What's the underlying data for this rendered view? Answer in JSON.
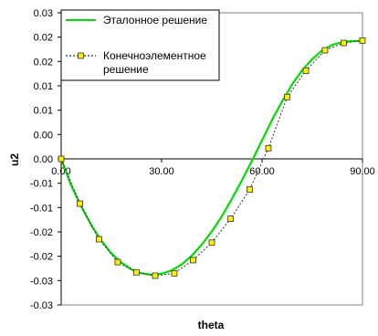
{
  "chart_data": {
    "type": "line",
    "xlabel": "theta",
    "ylabel": "u2",
    "xlim": [
      0,
      90
    ],
    "ylim": [
      -0.03,
      0.03
    ],
    "x_ticks": [
      0,
      30,
      60,
      90
    ],
    "x_tick_labels": [
      "0.00",
      "30.00",
      "60.00",
      "90.00"
    ],
    "y_ticks": [
      0.03,
      0.025,
      0.02,
      0.015,
      0.01,
      0.005,
      0,
      -0.005,
      -0.01,
      -0.015,
      -0.02,
      -0.025,
      -0.03
    ],
    "y_tick_labels": [
      "0.03",
      "0.02",
      "0.02",
      "0.01",
      "0.01",
      "0.00",
      "0.00",
      "-0.01",
      "-0.01",
      "-0.02",
      "-0.02",
      "-0.03",
      "-0.03"
    ],
    "legend_position": "top-left",
    "grid": false,
    "series": [
      {
        "name": "Эталонное решение",
        "style": "solid",
        "color": "#00dd00",
        "x": [
          0,
          3,
          6,
          9,
          12,
          15,
          18,
          21,
          24,
          27,
          30,
          33,
          36,
          39,
          42,
          45,
          48,
          51,
          54,
          57,
          60,
          63,
          66,
          69,
          72,
          75,
          78,
          81,
          84,
          87,
          90
        ],
        "values": [
          0,
          -0.0055,
          -0.0098,
          -0.0136,
          -0.0168,
          -0.0194,
          -0.0213,
          -0.0227,
          -0.0235,
          -0.0238,
          -0.0236,
          -0.0229,
          -0.0217,
          -0.0199,
          -0.0176,
          -0.0149,
          -0.0118,
          -0.0082,
          -0.0044,
          -0.0004,
          0.0038,
          0.008,
          0.0118,
          0.0153,
          0.0182,
          0.0205,
          0.0223,
          0.0234,
          0.024,
          0.0242,
          0.0242
        ]
      },
      {
        "name": "Конечноэлементное решение",
        "style": "dotted",
        "color": "#333333",
        "marker": "square",
        "marker_color": "#ffee00",
        "x": [
          0,
          5.6,
          11.3,
          16.9,
          22.5,
          28.1,
          33.8,
          39.4,
          45,
          50.6,
          56.3,
          61.9,
          67.5,
          73.1,
          78.8,
          84.4,
          90
        ],
        "values": [
          0,
          -0.0092,
          -0.0165,
          -0.0212,
          -0.0233,
          -0.024,
          -0.0235,
          -0.0208,
          -0.0172,
          -0.0123,
          -0.0063,
          0.0022,
          0.0127,
          0.0181,
          0.0223,
          0.0238,
          0.0243
        ]
      }
    ]
  }
}
